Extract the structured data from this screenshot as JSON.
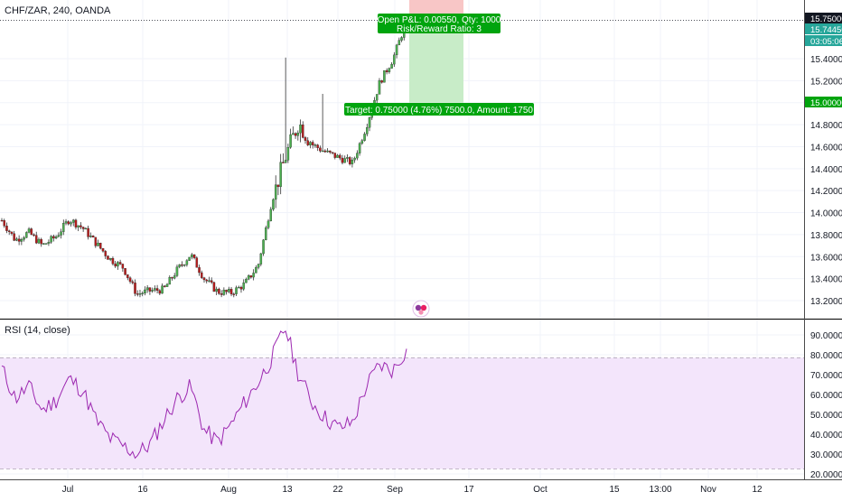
{
  "header": {
    "symbol_label": "CHF/ZAR, 240, OANDA"
  },
  "rsi_pane": {
    "label": "RSI (14, close)"
  },
  "price_scale": {
    "ticks": [
      "15.40000",
      "15.20000",
      "15.00000",
      "14.80000",
      "14.60000",
      "14.40000",
      "14.20000",
      "14.00000",
      "13.80000",
      "13.60000",
      "13.40000",
      "13.20000"
    ],
    "badges": [
      {
        "text": "15.75000",
        "color": "#131722",
        "text_color": "#ffffff"
      },
      {
        "text": "15.74450",
        "color": "#26a69a",
        "text_color": "#ffffff"
      },
      {
        "text": "03:05:06",
        "color": "#26a69a",
        "text_color": "#ffffff"
      },
      {
        "text": "15.00000",
        "color": "#00a40e",
        "text_color": "#ffffff"
      }
    ]
  },
  "rsi_scale": {
    "ticks": [
      "90.0000",
      "80.0000",
      "70.0000",
      "60.0000",
      "50.0000",
      "40.0000",
      "30.0000",
      "20.0000"
    ]
  },
  "time_axis": {
    "ticks": [
      "Jul",
      "16",
      "Aug",
      "13",
      "22",
      "Sep",
      "17",
      "Oct",
      "15",
      "13:00",
      "Nov",
      "12"
    ]
  },
  "position_tool": {
    "pnl_label": "Open P&L: 0.00550, Qty: 1000",
    "ratio_label": "Risk/Reward Ratio: 3",
    "target_label": "Target: 0.75000 (4.76%) 7500.0, Amount: 1750"
  },
  "colors": {
    "up": "#26a69a",
    "down": "#ef5350",
    "candle_body_up": "#4caf50",
    "candle_body_down": "#b71c1c",
    "rsi_line": "#9c27b0",
    "rsi_band": "#f3e5fb",
    "profit_zone": "#c8ecc8",
    "loss_zone": "#f8c6c6",
    "label_green": "#00a40e"
  },
  "chart_data": [
    {
      "type": "candlestick",
      "title": "CHF/ZAR, 240, OANDA",
      "ylim": [
        13.1,
        15.8
      ],
      "key_levels": {
        "stop": 15.75,
        "last": 15.7445,
        "target": 15.0
      },
      "close_path": [
        {
          "x": "Jun 26",
          "y": 13.93
        },
        {
          "x": "Jun 28",
          "y": 13.75
        },
        {
          "x": "Jul 1",
          "y": 13.82
        },
        {
          "x": "Jul 3",
          "y": 13.7
        },
        {
          "x": "Jul 5",
          "y": 13.78
        },
        {
          "x": "Jul 8",
          "y": 13.94
        },
        {
          "x": "Jul 10",
          "y": 13.86
        },
        {
          "x": "Jul 12",
          "y": 13.72
        },
        {
          "x": "Jul 15",
          "y": 13.58
        },
        {
          "x": "Jul 17",
          "y": 13.5
        },
        {
          "x": "Jul 19",
          "y": 13.26
        },
        {
          "x": "Jul 22",
          "y": 13.29
        },
        {
          "x": "Jul 24",
          "y": 13.3
        },
        {
          "x": "Jul 26",
          "y": 13.48
        },
        {
          "x": "Jul 29",
          "y": 13.62
        },
        {
          "x": "Jul 31",
          "y": 13.4
        },
        {
          "x": "Aug 2",
          "y": 13.28
        },
        {
          "x": "Aug 5",
          "y": 13.27
        },
        {
          "x": "Aug 7",
          "y": 13.35
        },
        {
          "x": "Aug 9",
          "y": 13.52
        },
        {
          "x": "Aug 12",
          "y": 14.1
        },
        {
          "x": "Aug 13",
          "y": 14.5
        },
        {
          "x": "Aug 16",
          "y": 14.82
        },
        {
          "x": "Aug 19",
          "y": 14.62
        },
        {
          "x": "Aug 21",
          "y": 14.55
        },
        {
          "x": "Aug 23",
          "y": 14.5
        },
        {
          "x": "Aug 26",
          "y": 14.45
        },
        {
          "x": "Aug 28",
          "y": 14.78
        },
        {
          "x": "Aug 30",
          "y": 15.18
        },
        {
          "x": "Sep 2",
          "y": 15.4
        },
        {
          "x": "Sep 3",
          "y": 15.745
        }
      ]
    },
    {
      "type": "line",
      "title": "RSI (14, close)",
      "ylim": [
        20,
        95
      ],
      "bands": [
        30,
        70
      ],
      "series": [
        {
          "points": [
            {
              "x": "Jun 26",
              "y": 73
            },
            {
              "x": "Jun 28",
              "y": 58
            },
            {
              "x": "Jul 1",
              "y": 64
            },
            {
              "x": "Jul 3",
              "y": 52
            },
            {
              "x": "Jul 5",
              "y": 57
            },
            {
              "x": "Jul 8",
              "y": 68
            },
            {
              "x": "Jul 10",
              "y": 62
            },
            {
              "x": "Jul 12",
              "y": 47
            },
            {
              "x": "Jul 15",
              "y": 38
            },
            {
              "x": "Jul 17",
              "y": 34
            },
            {
              "x": "Jul 19",
              "y": 30
            },
            {
              "x": "Jul 22",
              "y": 35
            },
            {
              "x": "Jul 24",
              "y": 47
            },
            {
              "x": "Jul 26",
              "y": 58
            },
            {
              "x": "Jul 29",
              "y": 64
            },
            {
              "x": "Jul 31",
              "y": 42
            },
            {
              "x": "Aug 2",
              "y": 36
            },
            {
              "x": "Aug 5",
              "y": 45
            },
            {
              "x": "Aug 7",
              "y": 56
            },
            {
              "x": "Aug 9",
              "y": 66
            },
            {
              "x": "Aug 12",
              "y": 78
            },
            {
              "x": "Aug 13",
              "y": 94
            },
            {
              "x": "Aug 16",
              "y": 70
            },
            {
              "x": "Aug 19",
              "y": 56
            },
            {
              "x": "Aug 21",
              "y": 48
            },
            {
              "x": "Aug 23",
              "y": 43
            },
            {
              "x": "Aug 26",
              "y": 46
            },
            {
              "x": "Aug 28",
              "y": 64
            },
            {
              "x": "Aug 30",
              "y": 75
            },
            {
              "x": "Sep 2",
              "y": 72
            },
            {
              "x": "Sep 3",
              "y": 83
            }
          ]
        }
      ]
    }
  ]
}
